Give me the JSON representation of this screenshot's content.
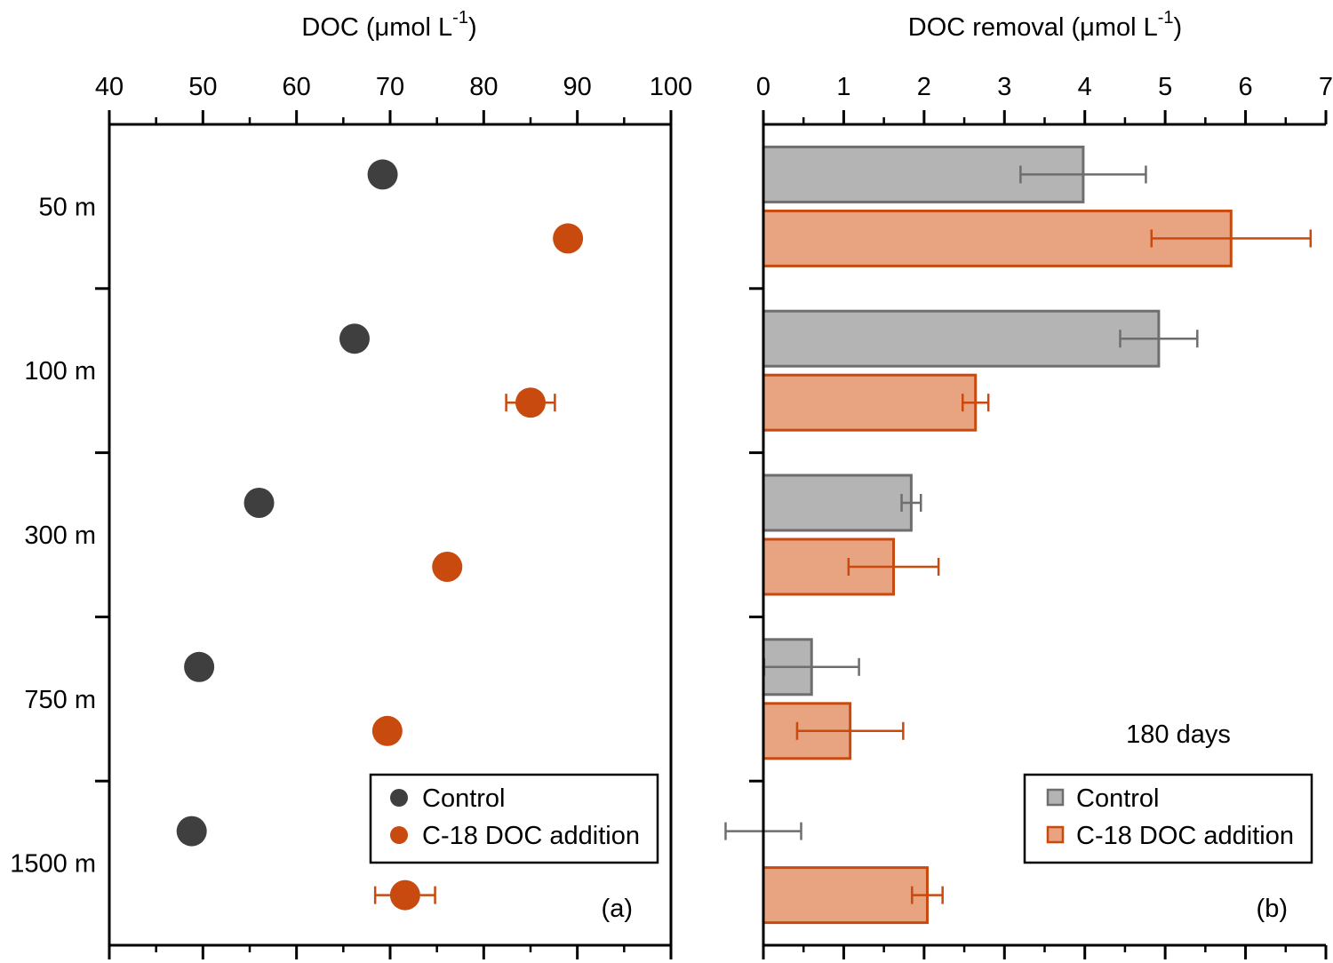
{
  "chart_data": [
    {
      "type": "scatter",
      "panel_label": "(a)",
      "title": "",
      "xlabel_main": "DOC (μmol L",
      "xlabel_sup": "-1",
      "xlabel_close": ")",
      "xlim": [
        40,
        100
      ],
      "xticks": [
        "40",
        "50",
        "60",
        "70",
        "80",
        "90",
        "100"
      ],
      "categories": [
        "50 m",
        "100 m",
        "300 m",
        "750 m",
        "1500 m"
      ],
      "series": [
        {
          "name": "Control",
          "color": "#3f3f3f",
          "values": [
            69.2,
            66.2,
            56.0,
            49.6,
            48.8
          ],
          "errors": [
            null,
            null,
            null,
            null,
            null
          ]
        },
        {
          "name": "C-18 DOC addition",
          "color": "#c94a0f",
          "values": [
            89.0,
            85.0,
            76.1,
            69.7,
            71.6
          ],
          "errors": [
            null,
            2.6,
            null,
            null,
            3.2
          ]
        }
      ],
      "legend": {
        "position": "bottom-right",
        "entries": [
          "Control",
          "C-18 DOC addition"
        ]
      }
    },
    {
      "type": "bar",
      "panel_label": "(b)",
      "title": "",
      "annotation": "180 days",
      "xlabel_main": "DOC removal (μmol L",
      "xlabel_sup": "-1",
      "xlabel_close": ")",
      "xlim": [
        0,
        7
      ],
      "xticks": [
        "0",
        "1",
        "2",
        "3",
        "4",
        "5",
        "6",
        "7"
      ],
      "categories": [
        "50 m",
        "100 m",
        "300 m",
        "750 m",
        "1500 m"
      ],
      "series": [
        {
          "name": "Control",
          "fill": "#b4b4b4",
          "stroke": "#6e6e6e",
          "values": [
            3.98,
            4.92,
            1.84,
            0.6,
            0.0
          ],
          "errors": [
            0.78,
            0.48,
            0.12,
            0.59,
            0.47
          ]
        },
        {
          "name": "C-18 DOC addition",
          "fill": "#e8a380",
          "stroke": "#c94a0f",
          "values": [
            5.82,
            2.64,
            1.62,
            1.08,
            2.04
          ],
          "errors": [
            0.99,
            0.16,
            0.56,
            0.66,
            0.19
          ]
        }
      ],
      "legend": {
        "position": "bottom-right",
        "entries": [
          "Control",
          "C-18 DOC addition"
        ]
      }
    }
  ]
}
